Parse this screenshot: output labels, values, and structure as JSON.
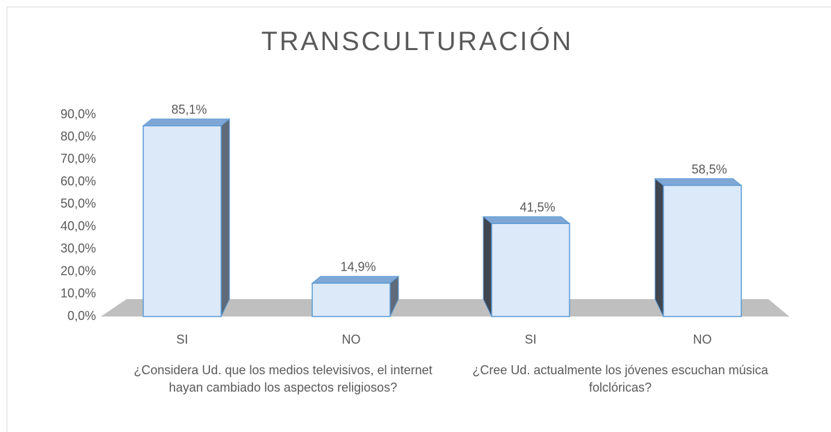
{
  "chart_data": {
    "type": "bar3d",
    "title": "TRANSCULTURACIÓN",
    "categories": [
      "SI",
      "NO",
      "SI",
      "NO"
    ],
    "groups": [
      "¿Considera Ud. que los medios televisivos, el internet hayan cambiado los aspectos religiosos?",
      "¿Cree Ud. actualmente los jóvenes escuchan música folclóricas?"
    ],
    "values": [
      85.1,
      14.9,
      41.5,
      58.5
    ],
    "value_labels": [
      "85,1%",
      "14,9%",
      "41,5%",
      "58,5%"
    ],
    "color": "#dce9f8",
    "ylim": [
      0,
      90
    ],
    "yticks": [
      {
        "value": 0,
        "label": "0,0%"
      },
      {
        "value": 10,
        "label": "10,0%"
      },
      {
        "value": 20,
        "label": "20,0%"
      },
      {
        "value": 30,
        "label": "30,0%"
      },
      {
        "value": 40,
        "label": "40,0%"
      },
      {
        "value": 50,
        "label": "50,0%"
      },
      {
        "value": 60,
        "label": "60,0%"
      },
      {
        "value": 70,
        "label": "70,0%"
      },
      {
        "value": 80,
        "label": "80,0%"
      },
      {
        "value": 90,
        "label": "90,0%"
      }
    ],
    "grid": false
  }
}
